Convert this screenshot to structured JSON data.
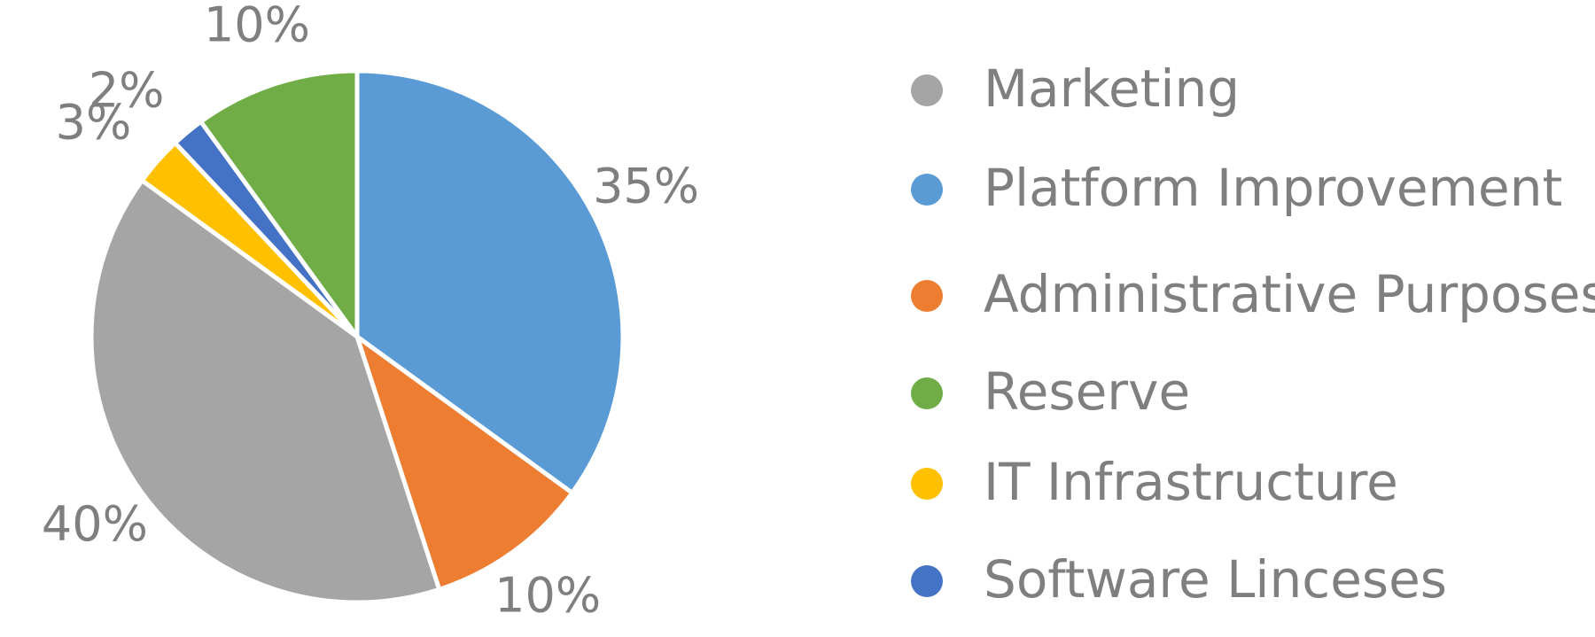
{
  "chart_data": {
    "type": "pie",
    "title": "",
    "slices": [
      {
        "name": "Platform Improvement",
        "value": 35,
        "label": "35%",
        "color": "#5b9bd5"
      },
      {
        "name": "Administrative Purposes",
        "value": 10,
        "label": "10%",
        "color": "#ed7d31"
      },
      {
        "name": "Marketing",
        "value": 40,
        "label": "40%",
        "color": "#a5a5a5"
      },
      {
        "name": "IT Infrastructure",
        "value": 3,
        "label": "3%",
        "color": "#ffc000"
      },
      {
        "name": "Software Linceses",
        "value": 2,
        "label": "2%",
        "color": "#4472c4"
      },
      {
        "name": "Reserve",
        "value": 10,
        "label": "10%",
        "color": "#70ad47"
      }
    ],
    "legend": {
      "position": "right",
      "entries": [
        {
          "name": "Marketing",
          "color": "#a5a5a5"
        },
        {
          "name": "Platform Improvement",
          "color": "#5b9bd5"
        },
        {
          "name": "Administrative Purposes",
          "color": "#ed7d31"
        },
        {
          "name": "Reserve",
          "color": "#70ad47"
        },
        {
          "name": "IT Infrastructure",
          "color": "#ffc000"
        },
        {
          "name": "Software Linceses",
          "color": "#4472c4"
        }
      ]
    },
    "colors": {
      "text": "#7f7f7f",
      "slice_border": "#ffffff"
    }
  }
}
